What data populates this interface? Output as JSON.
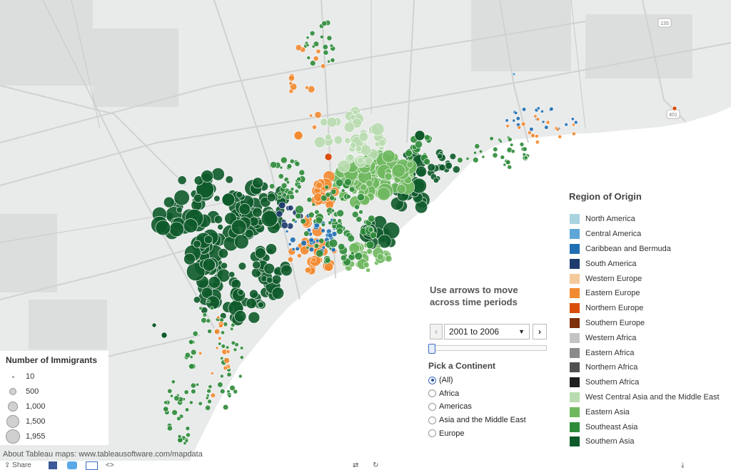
{
  "map": {
    "attribution": "About Tableau maps: www.tableausoftware.com/mapdata",
    "highway_shields": [
      "135",
      "401"
    ]
  },
  "region_legend": {
    "title": "Region of Origin",
    "items": [
      {
        "label": "North America",
        "color": "#a9d3df"
      },
      {
        "label": "Central America",
        "color": "#5ea6d6"
      },
      {
        "label": "Caribbean and Bermuda",
        "color": "#1f6fb2"
      },
      {
        "label": "South America",
        "color": "#1e3b6e"
      },
      {
        "label": "Western Europe",
        "color": "#f4c99b"
      },
      {
        "label": "Eastern Europe",
        "color": "#f28a30"
      },
      {
        "label": "Northern Europe",
        "color": "#d94e0d"
      },
      {
        "label": "Southern Europe",
        "color": "#7f2f0a"
      },
      {
        "label": "Western Africa",
        "color": "#c4c4c4"
      },
      {
        "label": "Eastern Africa",
        "color": "#8a8a8a"
      },
      {
        "label": "Northern Africa",
        "color": "#505050"
      },
      {
        "label": "Southern Africa",
        "color": "#1e1e1e"
      },
      {
        "label": "West Central Asia and the Middle East",
        "color": "#b9dbb0"
      },
      {
        "label": "Eastern Asia",
        "color": "#6fb85f"
      },
      {
        "label": "Southeast Asia",
        "color": "#2e8b3a"
      },
      {
        "label": "Southern Asia",
        "color": "#0e5a2a"
      }
    ]
  },
  "time_control": {
    "title": "Use arrows to move across time periods",
    "selected_period": "2001 to 2006",
    "prev_symbol": "‹",
    "next_symbol": "›",
    "dropdown_symbol": "▼"
  },
  "continent_filter": {
    "title": "Pick a Continent",
    "options": [
      {
        "label": "(All)",
        "selected": true
      },
      {
        "label": "Africa",
        "selected": false
      },
      {
        "label": "Americas",
        "selected": false
      },
      {
        "label": "Asia and the Middle East",
        "selected": false
      },
      {
        "label": "Europe",
        "selected": false
      }
    ]
  },
  "size_legend": {
    "title": "Number of Immigrants",
    "items": [
      {
        "label": "10",
        "value": 10
      },
      {
        "label": "500",
        "value": 500
      },
      {
        "label": "1,000",
        "value": 1000
      },
      {
        "label": "1,500",
        "value": 1500
      },
      {
        "label": "1,955",
        "value": 1955
      }
    ]
  },
  "bottom_bar": {
    "share_label": "Share",
    "icons": [
      "facebook-icon",
      "twitter-icon",
      "email-icon",
      "embed-icon",
      "revert-icon",
      "download-icon"
    ]
  }
}
